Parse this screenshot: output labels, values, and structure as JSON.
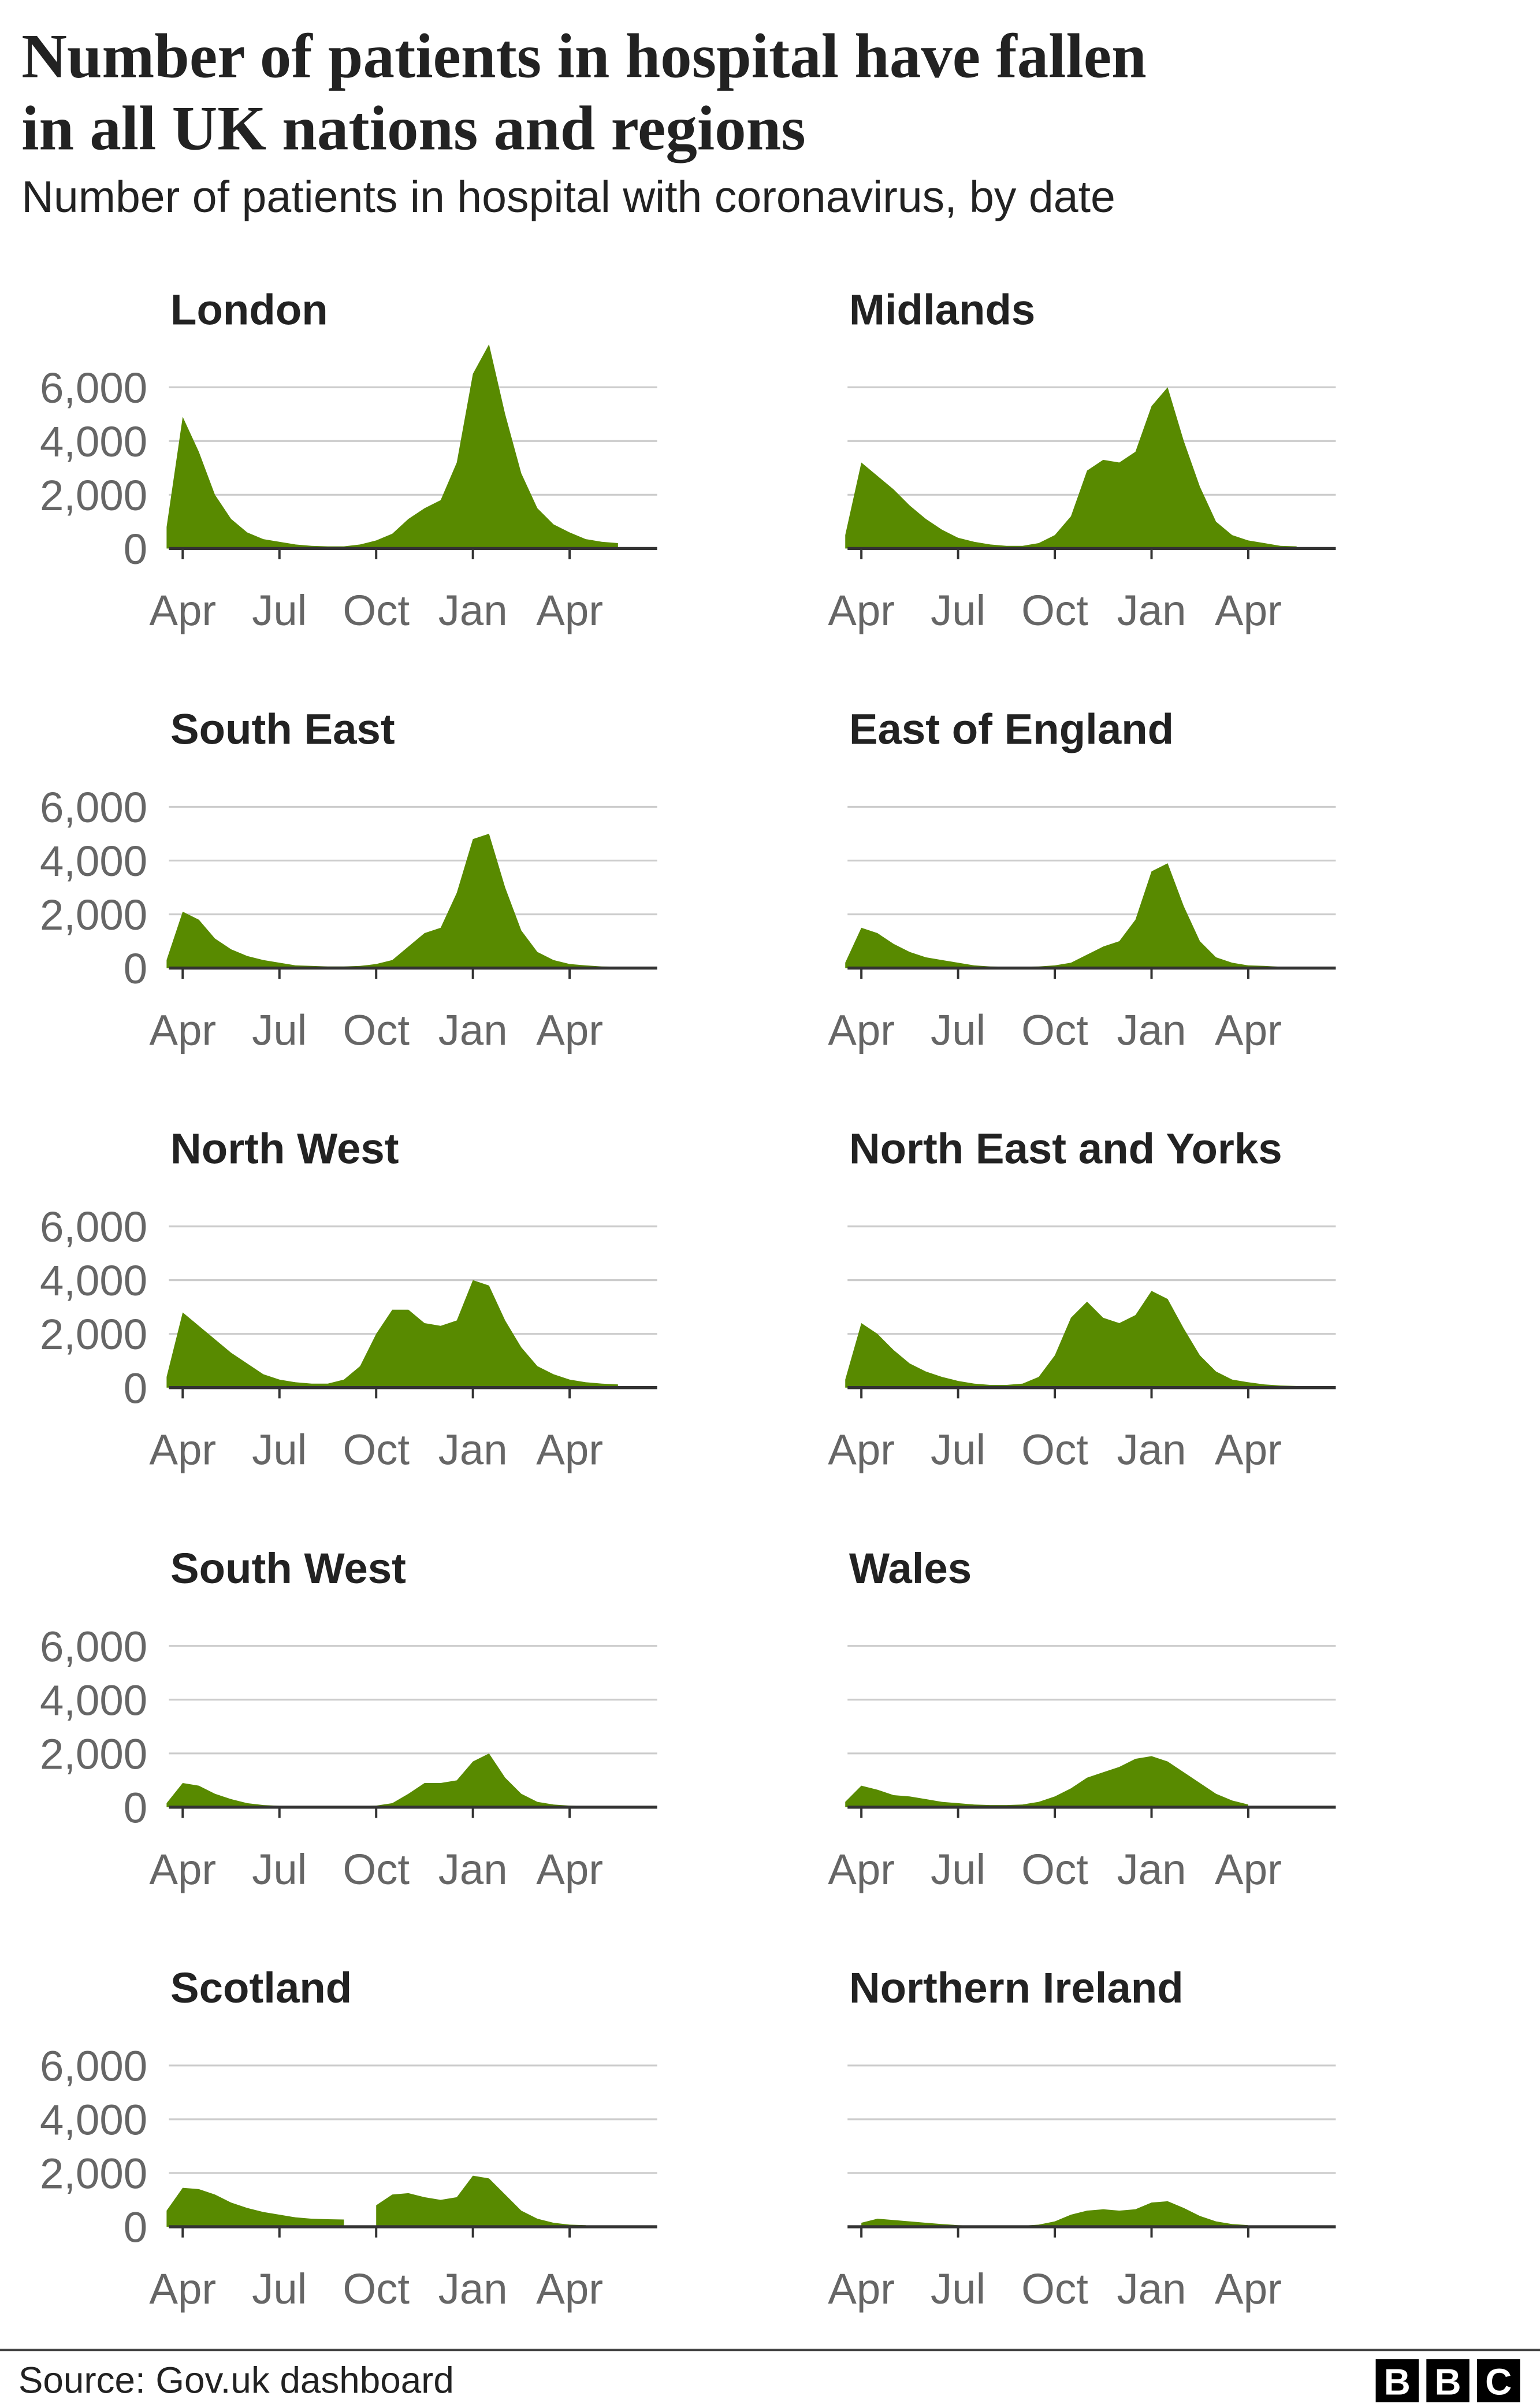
{
  "title": [
    "Number of patients in hospital have fallen",
    "in all UK nations and regions"
  ],
  "subtitle": "Number of patients in hospital with coronavirus, by date",
  "source": "Source: Gov.uk dashboard",
  "logo": [
    "B",
    "B",
    "C"
  ],
  "chart_data": [
    {
      "type": "area",
      "title": "London",
      "color": "#588a00",
      "grid": true,
      "ylim": [
        0,
        8000
      ],
      "yticks": [
        0,
        {
          "value": 2000,
          "label": "2,000"
        },
        {
          "value": 4000,
          "label": "4,000"
        },
        {
          "value": 6000,
          "label": "6,000"
        }
      ],
      "categories": [
        null,
        "Apr",
        null,
        null,
        null,
        null,
        null,
        "Jul",
        null,
        null,
        null,
        null,
        null,
        "Oct",
        null,
        null,
        null,
        null,
        null,
        "Jan",
        null,
        null,
        null,
        null,
        null,
        "Apr",
        null,
        null,
        null
      ],
      "values": [
        800,
        4900,
        3600,
        2000,
        1100,
        600,
        350,
        250,
        150,
        100,
        80,
        80,
        150,
        300,
        550,
        1100,
        1500,
        1800,
        3200,
        6500,
        7600,
        5000,
        2800,
        1500,
        900,
        600,
        350,
        250,
        200
      ]
    },
    {
      "type": "area",
      "title": "Midlands",
      "color": "#588a00",
      "grid": true,
      "ylim": [
        0,
        8000
      ],
      "show_ytick_labels": false,
      "yticks": [
        0,
        2000,
        4000,
        6000
      ],
      "categories": [
        null,
        "Apr",
        null,
        null,
        null,
        null,
        null,
        "Jul",
        null,
        null,
        null,
        null,
        null,
        "Oct",
        null,
        null,
        null,
        null,
        null,
        "Jan",
        null,
        null,
        null,
        null,
        null,
        "Apr",
        null,
        null,
        null
      ],
      "values": [
        500,
        3200,
        2700,
        2200,
        1600,
        1100,
        700,
        400,
        250,
        150,
        100,
        100,
        200,
        500,
        1200,
        2900,
        3300,
        3200,
        3600,
        5300,
        6000,
        4000,
        2300,
        1000,
        500,
        300,
        200,
        100,
        80
      ]
    },
    {
      "type": "area",
      "title": "South East",
      "color": "#588a00",
      "grid": true,
      "ylim": [
        0,
        8000
      ],
      "yticks": [
        0,
        {
          "value": 2000,
          "label": "2,000"
        },
        {
          "value": 4000,
          "label": "4,000"
        },
        {
          "value": 6000,
          "label": "6,000"
        }
      ],
      "categories": [
        null,
        "Apr",
        null,
        null,
        null,
        null,
        null,
        "Jul",
        null,
        null,
        null,
        null,
        null,
        "Oct",
        null,
        null,
        null,
        null,
        null,
        "Jan",
        null,
        null,
        null,
        null,
        null,
        "Apr",
        null,
        null,
        null
      ],
      "values": [
        300,
        2100,
        1800,
        1100,
        700,
        450,
        300,
        200,
        100,
        80,
        60,
        60,
        80,
        150,
        300,
        800,
        1300,
        1500,
        2800,
        4800,
        5000,
        3000,
        1400,
        600,
        300,
        150,
        100,
        60,
        50
      ]
    },
    {
      "type": "area",
      "title": "East of England",
      "color": "#588a00",
      "grid": true,
      "ylim": [
        0,
        8000
      ],
      "show_ytick_labels": false,
      "yticks": [
        0,
        2000,
        4000,
        6000
      ],
      "categories": [
        null,
        "Apr",
        null,
        null,
        null,
        null,
        null,
        "Jul",
        null,
        null,
        null,
        null,
        null,
        "Oct",
        null,
        null,
        null,
        null,
        null,
        "Jan",
        null,
        null,
        null,
        null,
        null,
        "Apr",
        null,
        null,
        null
      ],
      "values": [
        200,
        1500,
        1300,
        900,
        600,
        400,
        300,
        200,
        100,
        60,
        50,
        50,
        60,
        100,
        200,
        500,
        800,
        1000,
        1800,
        3600,
        3900,
        2300,
        1000,
        400,
        200,
        100,
        80,
        50,
        40
      ]
    },
    {
      "type": "area",
      "title": "North West",
      "color": "#588a00",
      "grid": true,
      "ylim": [
        0,
        8000
      ],
      "yticks": [
        0,
        {
          "value": 2000,
          "label": "2,000"
        },
        {
          "value": 4000,
          "label": "4,000"
        },
        {
          "value": 6000,
          "label": "6,000"
        }
      ],
      "categories": [
        null,
        "Apr",
        null,
        null,
        null,
        null,
        null,
        "Jul",
        null,
        null,
        null,
        null,
        null,
        "Oct",
        null,
        null,
        null,
        null,
        null,
        "Jan",
        null,
        null,
        null,
        null,
        null,
        "Apr",
        null,
        null,
        null
      ],
      "values": [
        400,
        2800,
        2300,
        1800,
        1300,
        900,
        500,
        300,
        200,
        150,
        150,
        300,
        800,
        2000,
        2900,
        2900,
        2400,
        2300,
        2500,
        4000,
        3800,
        2500,
        1500,
        800,
        500,
        300,
        200,
        150,
        120
      ]
    },
    {
      "type": "area",
      "title": "North East and Yorks",
      "color": "#588a00",
      "grid": true,
      "ylim": [
        0,
        8000
      ],
      "show_ytick_labels": false,
      "yticks": [
        0,
        2000,
        4000,
        6000
      ],
      "categories": [
        null,
        "Apr",
        null,
        null,
        null,
        null,
        null,
        "Jul",
        null,
        null,
        null,
        null,
        null,
        "Oct",
        null,
        null,
        null,
        null,
        null,
        "Jan",
        null,
        null,
        null,
        null,
        null,
        "Apr",
        null,
        null,
        null
      ],
      "values": [
        300,
        2400,
        2000,
        1400,
        900,
        600,
        400,
        250,
        150,
        100,
        100,
        150,
        400,
        1200,
        2600,
        3200,
        2600,
        2400,
        2700,
        3600,
        3300,
        2200,
        1200,
        600,
        300,
        200,
        120,
        80,
        60
      ]
    },
    {
      "type": "area",
      "title": "South West",
      "color": "#588a00",
      "grid": true,
      "ylim": [
        0,
        8000
      ],
      "yticks": [
        0,
        {
          "value": 2000,
          "label": "2,000"
        },
        {
          "value": 4000,
          "label": "4,000"
        },
        {
          "value": 6000,
          "label": "6,000"
        }
      ],
      "categories": [
        null,
        "Apr",
        null,
        null,
        null,
        null,
        null,
        "Jul",
        null,
        null,
        null,
        null,
        null,
        "Oct",
        null,
        null,
        null,
        null,
        null,
        "Jan",
        null,
        null,
        null,
        null,
        null,
        "Apr",
        null,
        null,
        null
      ],
      "values": [
        150,
        900,
        800,
        500,
        300,
        150,
        80,
        50,
        40,
        30,
        30,
        30,
        40,
        60,
        150,
        500,
        900,
        900,
        1000,
        1700,
        2000,
        1100,
        500,
        200,
        100,
        60,
        40,
        30,
        30
      ]
    },
    {
      "type": "area",
      "title": "Wales",
      "color": "#588a00",
      "grid": true,
      "ylim": [
        0,
        8000
      ],
      "show_ytick_labels": false,
      "yticks": [
        0,
        2000,
        4000,
        6000
      ],
      "categories": [
        null,
        "Apr",
        null,
        null,
        null,
        null,
        null,
        "Jul",
        null,
        null,
        null,
        null,
        null,
        "Oct",
        null,
        null,
        null,
        null,
        null,
        "Jan",
        null,
        null,
        null,
        null,
        null,
        "Apr",
        null,
        null,
        null
      ],
      "values": [
        200,
        800,
        650,
        450,
        400,
        300,
        200,
        150,
        100,
        80,
        80,
        100,
        200,
        400,
        700,
        1100,
        1300,
        1500,
        1800,
        1900,
        1700,
        1300,
        900,
        500,
        250,
        100,
        null,
        null,
        null
      ]
    },
    {
      "type": "area",
      "title": "Scotland",
      "color": "#588a00",
      "grid": true,
      "ylim": [
        0,
        8000
      ],
      "yticks": [
        0,
        {
          "value": 2000,
          "label": "2,000"
        },
        {
          "value": 4000,
          "label": "4,000"
        },
        {
          "value": 6000,
          "label": "6,000"
        }
      ],
      "categories": [
        null,
        "Apr",
        null,
        null,
        null,
        null,
        null,
        "Jul",
        null,
        null,
        null,
        null,
        null,
        "Oct",
        null,
        null,
        null,
        null,
        null,
        "Jan",
        null,
        null,
        null,
        null,
        null,
        "Apr",
        null,
        null,
        null
      ],
      "values": [
        600,
        1450,
        1400,
        1200,
        900,
        700,
        550,
        450,
        350,
        300,
        280,
        270,
        null,
        800,
        1200,
        1250,
        1100,
        1000,
        1100,
        1900,
        1800,
        1200,
        600,
        300,
        150,
        80,
        60,
        null,
        null
      ]
    },
    {
      "type": "area",
      "title": "Northern Ireland",
      "color": "#588a00",
      "grid": true,
      "ylim": [
        0,
        8000
      ],
      "show_ytick_labels": false,
      "yticks": [
        0,
        2000,
        4000,
        6000
      ],
      "categories": [
        null,
        "Apr",
        null,
        null,
        null,
        null,
        null,
        "Jul",
        null,
        null,
        null,
        null,
        null,
        "Oct",
        null,
        null,
        null,
        null,
        null,
        "Jan",
        null,
        null,
        null,
        null,
        null,
        "Apr",
        null,
        null,
        null
      ],
      "values": [
        null,
        150,
        300,
        250,
        200,
        150,
        100,
        60,
        40,
        30,
        30,
        40,
        80,
        200,
        450,
        600,
        650,
        600,
        650,
        900,
        950,
        700,
        400,
        200,
        100,
        60,
        null,
        null,
        null
      ]
    }
  ]
}
